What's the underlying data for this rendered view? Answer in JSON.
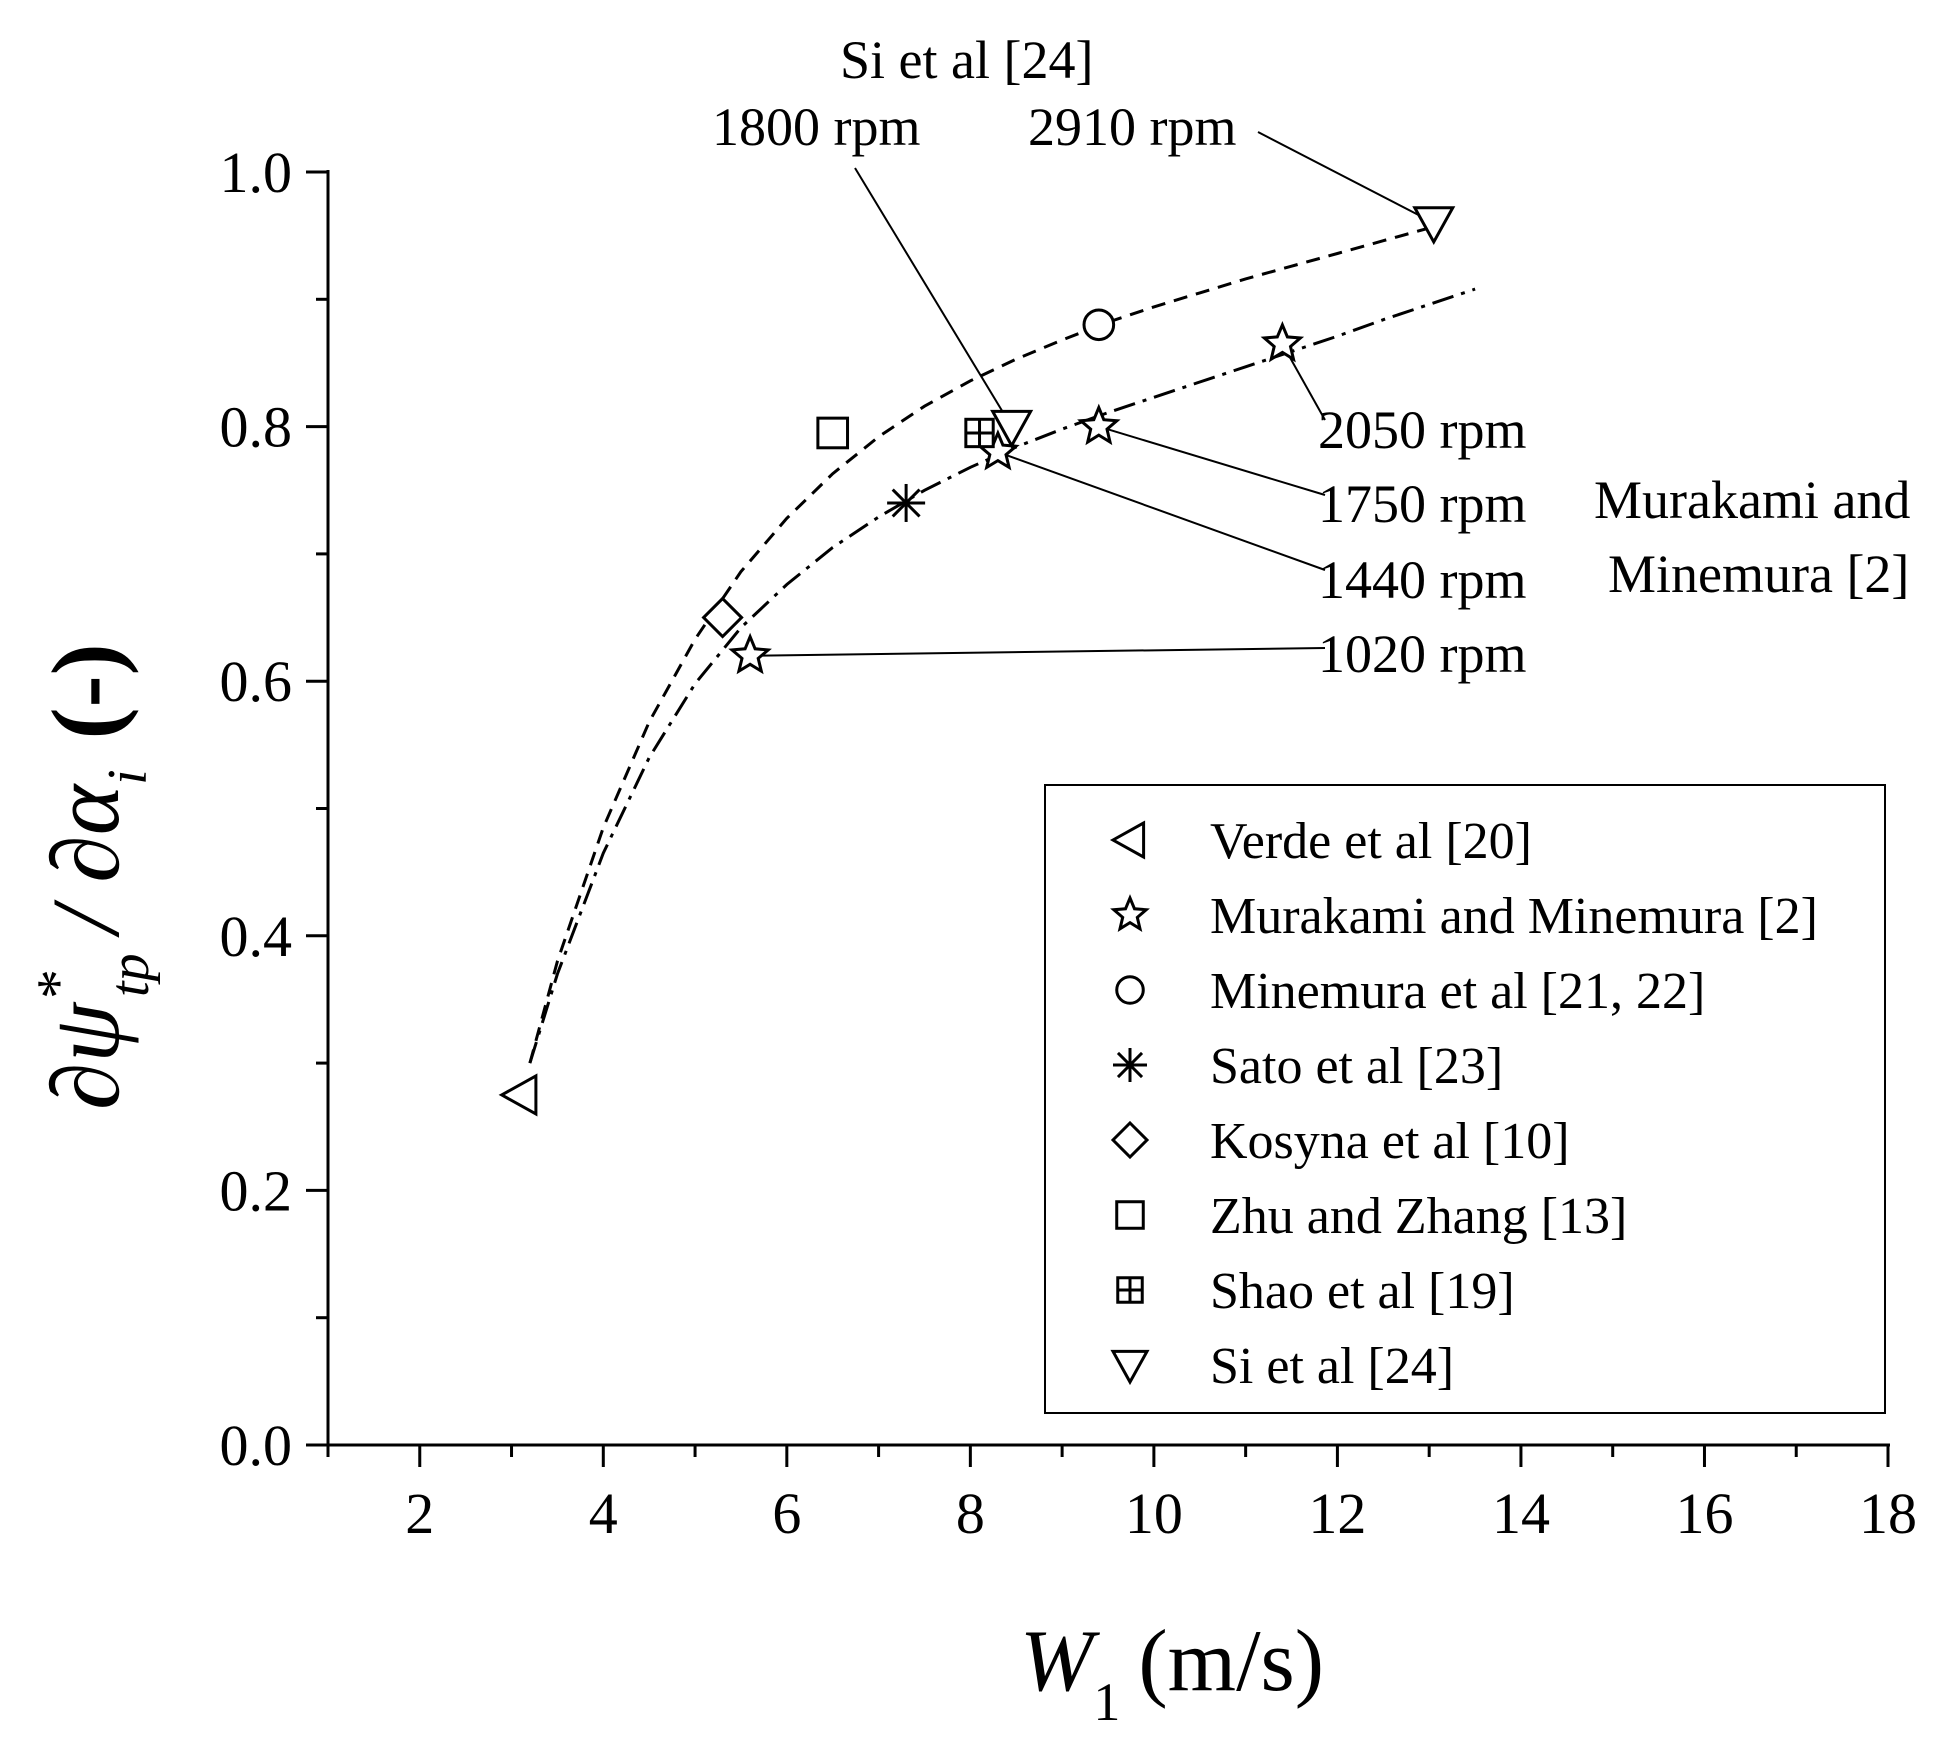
{
  "chart_data": {
    "type": "scatter",
    "xlabel_main": "W",
    "xlabel_sub": "1",
    "xlabel_units": "(m/s)",
    "ylabel_numer": "∂ψ",
    "ylabel_sup": "*",
    "ylabel_sub": "tp",
    "ylabel_denom": "/ ∂α",
    "ylabel_denom_sub": "i",
    "ylabel_units": "(-)",
    "xlim": [
      1,
      18
    ],
    "ylim": [
      0.0,
      1.0
    ],
    "x_ticks": [
      2,
      4,
      6,
      8,
      10,
      12,
      14,
      16,
      18
    ],
    "x_tick_labels": [
      "2",
      "4",
      "6",
      "8",
      "10",
      "12",
      "14",
      "16",
      "18"
    ],
    "x_minor_ticks": [
      1,
      3,
      5,
      7,
      9,
      11,
      13,
      15,
      17
    ],
    "y_ticks": [
      0.0,
      0.2,
      0.4,
      0.6,
      0.8,
      1.0
    ],
    "y_tick_labels": [
      "0.0",
      "0.2",
      "0.4",
      "0.6",
      "0.8",
      "1.0"
    ],
    "y_minor_ticks": [
      0.1,
      0.3,
      0.5,
      0.7,
      0.9
    ],
    "series": [
      {
        "name": "Verde et al [20]",
        "marker": "triangle-left",
        "points": [
          [
            3.1,
            0.275
          ]
        ]
      },
      {
        "name": "Murakami and Minemura [2]",
        "marker": "star",
        "points": [
          [
            5.6,
            0.62
          ],
          [
            8.3,
            0.78
          ],
          [
            9.4,
            0.8
          ],
          [
            11.4,
            0.865
          ]
        ]
      },
      {
        "name": "Minemura et al [21, 22]",
        "marker": "circle",
        "points": [
          [
            9.4,
            0.88
          ]
        ]
      },
      {
        "name": "Sato et al [23]",
        "marker": "asterisk",
        "points": [
          [
            7.3,
            0.74
          ]
        ]
      },
      {
        "name": "Kosyna et al [10]",
        "marker": "diamond",
        "points": [
          [
            5.3,
            0.65
          ]
        ]
      },
      {
        "name": "Zhu and Zhang [13]",
        "marker": "square",
        "points": [
          [
            6.5,
            0.795
          ]
        ]
      },
      {
        "name": "Shao et al [19]",
        "marker": "square-plus",
        "points": [
          [
            8.1,
            0.795
          ]
        ]
      },
      {
        "name": "Si et al [24]",
        "marker": "triangle-down",
        "points": [
          [
            8.45,
            0.8
          ],
          [
            13.05,
            0.96
          ]
        ]
      }
    ],
    "curves": [
      {
        "name": "dashed-fit",
        "style": "dashed",
        "x": [
          3.2,
          3.5,
          4.0,
          4.5,
          5.0,
          5.5,
          6.0,
          6.5,
          7.0,
          7.5,
          8.0,
          8.5,
          9.0,
          9.5,
          10.0,
          10.5,
          11.0,
          11.5,
          12.0,
          12.5,
          13.0
        ],
        "y": [
          0.3,
          0.38,
          0.485,
          0.568,
          0.633,
          0.686,
          0.728,
          0.763,
          0.792,
          0.816,
          0.836,
          0.853,
          0.868,
          0.882,
          0.894,
          0.905,
          0.916,
          0.926,
          0.936,
          0.946,
          0.956
        ]
      },
      {
        "name": "dash-dot-fit",
        "style": "dashdot",
        "x": [
          3.2,
          3.5,
          4.0,
          4.5,
          5.0,
          5.5,
          6.0,
          6.5,
          7.0,
          7.5,
          8.0,
          8.5,
          9.0,
          9.5,
          10.0,
          10.5,
          11.0,
          11.5,
          12.0,
          12.5,
          13.0,
          13.5
        ],
        "y": [
          0.3,
          0.37,
          0.465,
          0.54,
          0.598,
          0.642,
          0.676,
          0.705,
          0.729,
          0.75,
          0.768,
          0.784,
          0.798,
          0.811,
          0.823,
          0.835,
          0.847,
          0.859,
          0.871,
          0.884,
          0.896,
          0.908
        ]
      }
    ],
    "annotations": [
      {
        "text": "Si et al [24]"
      },
      {
        "text": "1800 rpm",
        "target": [
          8.45,
          0.8
        ]
      },
      {
        "text": "2910 rpm",
        "target": [
          13.05,
          0.96
        ]
      },
      {
        "text": "2050 rpm",
        "target": [
          11.4,
          0.865
        ]
      },
      {
        "text": "1750 rpm",
        "target": [
          9.4,
          0.8
        ]
      },
      {
        "text": "1440 rpm",
        "target": [
          8.3,
          0.78
        ]
      },
      {
        "text": "1020 rpm",
        "target": [
          5.6,
          0.62
        ]
      },
      {
        "text": "Murakami and"
      },
      {
        "text": "Minemura [2]"
      }
    ],
    "legend": {
      "placement": "bottom-right",
      "entries": [
        {
          "label": "Verde et al [20]",
          "marker": "triangle-left"
        },
        {
          "label": "Murakami and Minemura [2]",
          "marker": "star"
        },
        {
          "label": "Minemura et al [21, 22]",
          "marker": "circle"
        },
        {
          "label": "Sato et al [23]",
          "marker": "asterisk"
        },
        {
          "label": "Kosyna et al [10]",
          "marker": "diamond"
        },
        {
          "label": "Zhu and Zhang [13]",
          "marker": "square"
        },
        {
          "label": "Shao et al [19]",
          "marker": "square-plus"
        },
        {
          "label": "Si et al [24]",
          "marker": "triangle-down"
        }
      ]
    }
  }
}
